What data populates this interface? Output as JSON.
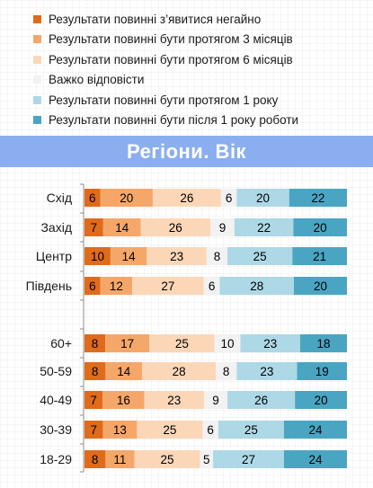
{
  "legend": [
    {
      "label": "Результати повинні з’явитися негайно",
      "color": "#e06b1b"
    },
    {
      "label": "Результати повинні бути протягом 3 місяців",
      "color": "#f5a76a"
    },
    {
      "label": "Результати повинні бути протягом 6 місяців",
      "color": "#fbd7b8"
    },
    {
      "label": "Важко відповісти",
      "color": "#f2f2f2"
    },
    {
      "label": "Результати повинні бути протягом 1 року",
      "color": "#add8e6"
    },
    {
      "label": "Результати повинні бути після 1 року роботи",
      "color": "#4aa5c3"
    }
  ],
  "banner": {
    "title": "Регіони. Вік"
  },
  "chart_data": {
    "type": "bar",
    "orientation": "horizontal",
    "stacked": true,
    "percent": true,
    "groups": [
      {
        "categories": [
          "Схід",
          "Захід",
          "Центр",
          "Південь"
        ]
      },
      {
        "categories": [
          "60+",
          "50-59",
          "40-49",
          "30-39",
          "18-29"
        ]
      }
    ],
    "series": [
      {
        "name": "Результати повинні з’явитися негайно",
        "values": [
          6,
          7,
          10,
          6,
          8,
          8,
          7,
          7,
          8
        ]
      },
      {
        "name": "Результати повинні бути протягом 3 місяців",
        "values": [
          20,
          14,
          14,
          12,
          17,
          14,
          16,
          13,
          11
        ]
      },
      {
        "name": "Результати повинні бути протягом 6 місяців",
        "values": [
          26,
          26,
          23,
          27,
          25,
          28,
          23,
          25,
          25
        ]
      },
      {
        "name": "Важко відповісти",
        "values": [
          6,
          9,
          8,
          6,
          10,
          8,
          9,
          6,
          5
        ]
      },
      {
        "name": "Результати повинні бути протягом 1 року",
        "values": [
          20,
          22,
          25,
          28,
          23,
          23,
          26,
          25,
          27
        ]
      },
      {
        "name": "Результати повинні бути після 1 року роботи",
        "values": [
          22,
          20,
          21,
          20,
          18,
          19,
          20,
          24,
          24
        ]
      }
    ],
    "label_colors": [
      "#000000",
      "#000000",
      "#000000",
      "#000000",
      "#000000",
      "#000000"
    ]
  }
}
